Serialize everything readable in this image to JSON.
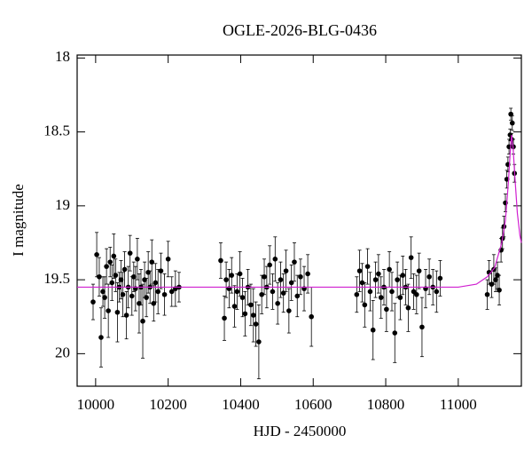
{
  "chart_data": {
    "type": "scatter",
    "title": "OGLE-2026-BLG-0436",
    "x_label": "HJD - 2450000",
    "y_label": "I magnitude",
    "xlim": [
      9949,
      11174
    ],
    "ylim": [
      17.98,
      20.22
    ],
    "y_inverted": true,
    "xticks": [
      10000,
      10200,
      10400,
      10600,
      10800,
      11000
    ],
    "yticks": [
      18,
      18.5,
      19,
      19.5,
      20
    ],
    "series": [
      {
        "type": "errorbar",
        "color": "#000000",
        "x": [
          9993,
          10003,
          10010,
          10015,
          10020,
          10025,
          10030,
          10035,
          10040,
          10045,
          10050,
          10055,
          10060,
          10065,
          10070,
          10075,
          10080,
          10085,
          10090,
          10095,
          10100,
          10105,
          10110,
          10115,
          10120,
          10125,
          10130,
          10135,
          10140,
          10145,
          10150,
          10155,
          10160,
          10165,
          10172,
          10180,
          10190,
          10200,
          10210,
          10220,
          10230,
          10345,
          10355,
          10360,
          10368,
          10375,
          10383,
          10390,
          10398,
          10405,
          10412,
          10420,
          10428,
          10435,
          10442,
          10450,
          10458,
          10465,
          10472,
          10480,
          10488,
          10495,
          10502,
          10510,
          10518,
          10525,
          10533,
          10540,
          10548,
          10556,
          10565,
          10575,
          10585,
          10595,
          10720,
          10728,
          10735,
          10742,
          10750,
          10757,
          10765,
          10772,
          10780,
          10787,
          10795,
          10802,
          10810,
          10817,
          10825,
          10832,
          10840,
          10847,
          10855,
          10862,
          10870,
          10877,
          10885,
          10892,
          10900,
          10910,
          10920,
          10930,
          10940,
          10950,
          11080,
          11085,
          11092,
          11098,
          11103,
          11108,
          11113,
          11118,
          11122,
          11126,
          11130,
          11134,
          11137,
          11140,
          11143,
          11145,
          11147,
          11149,
          11152,
          11155
        ],
        "values": [
          19.65,
          19.33,
          19.48,
          19.89,
          19.58,
          19.62,
          19.41,
          19.71,
          19.38,
          19.52,
          19.34,
          19.47,
          19.72,
          19.55,
          19.5,
          19.6,
          19.43,
          19.74,
          19.55,
          19.32,
          19.61,
          19.48,
          19.56,
          19.36,
          19.66,
          19.55,
          19.78,
          19.5,
          19.62,
          19.45,
          19.55,
          19.38,
          19.66,
          19.52,
          19.58,
          19.44,
          19.6,
          19.36,
          19.58,
          19.56,
          19.55,
          19.37,
          19.76,
          19.5,
          19.56,
          19.47,
          19.68,
          19.58,
          19.46,
          19.62,
          19.73,
          19.55,
          19.67,
          19.74,
          19.8,
          19.92,
          19.6,
          19.48,
          19.55,
          19.4,
          19.58,
          19.36,
          19.66,
          19.5,
          19.59,
          19.44,
          19.71,
          19.52,
          19.38,
          19.61,
          19.48,
          19.56,
          19.46,
          19.75,
          19.6,
          19.44,
          19.52,
          19.67,
          19.41,
          19.58,
          19.84,
          19.5,
          19.46,
          19.62,
          19.55,
          19.7,
          19.43,
          19.58,
          19.86,
          19.5,
          19.62,
          19.47,
          19.55,
          19.69,
          19.35,
          19.58,
          19.6,
          19.44,
          19.82,
          19.56,
          19.48,
          19.55,
          19.58,
          19.49,
          19.6,
          19.45,
          19.53,
          19.43,
          19.5,
          19.47,
          19.57,
          19.3,
          19.22,
          19.14,
          18.98,
          18.82,
          18.72,
          18.6,
          18.52,
          18.38,
          18.55,
          18.44,
          18.6,
          18.78
        ],
        "errors": [
          0.12,
          0.15,
          0.13,
          0.2,
          0.1,
          0.14,
          0.12,
          0.18,
          0.1,
          0.12,
          0.15,
          0.11,
          0.2,
          0.1,
          0.13,
          0.15,
          0.12,
          0.16,
          0.14,
          0.12,
          0.13,
          0.1,
          0.15,
          0.14,
          0.2,
          0.12,
          0.25,
          0.12,
          0.13,
          0.14,
          0.11,
          0.15,
          0.12,
          0.13,
          0.15,
          0.12,
          0.14,
          0.12,
          0.1,
          0.12,
          0.1,
          0.12,
          0.15,
          0.12,
          0.13,
          0.12,
          0.14,
          0.12,
          0.15,
          0.13,
          0.15,
          0.12,
          0.14,
          0.18,
          0.15,
          0.25,
          0.13,
          0.12,
          0.14,
          0.13,
          0.12,
          0.15,
          0.14,
          0.12,
          0.13,
          0.14,
          0.15,
          0.12,
          0.13,
          0.14,
          0.12,
          0.15,
          0.13,
          0.2,
          0.12,
          0.14,
          0.13,
          0.15,
          0.12,
          0.13,
          0.2,
          0.12,
          0.13,
          0.14,
          0.12,
          0.15,
          0.12,
          0.13,
          0.2,
          0.12,
          0.15,
          0.13,
          0.12,
          0.16,
          0.14,
          0.12,
          0.13,
          0.12,
          0.2,
          0.13,
          0.12,
          0.12,
          0.14,
          0.12,
          0.1,
          0.08,
          0.09,
          0.1,
          0.08,
          0.09,
          0.1,
          0.08,
          0.07,
          0.07,
          0.06,
          0.06,
          0.05,
          0.05,
          0.04,
          0.04,
          0.04,
          0.05,
          0.05,
          0.06
        ]
      },
      {
        "type": "line",
        "color": "#d020d0",
        "x": [
          9949,
          10500,
          11000,
          11050,
          11080,
          11100,
          11120,
          11130,
          11138,
          11143,
          11147,
          11151,
          11156,
          11163,
          11170,
          11174
        ],
        "values": [
          19.55,
          19.55,
          19.55,
          19.53,
          19.48,
          19.42,
          19.25,
          19.1,
          18.85,
          18.65,
          18.52,
          18.6,
          18.8,
          19.05,
          19.2,
          19.25
        ]
      }
    ]
  }
}
